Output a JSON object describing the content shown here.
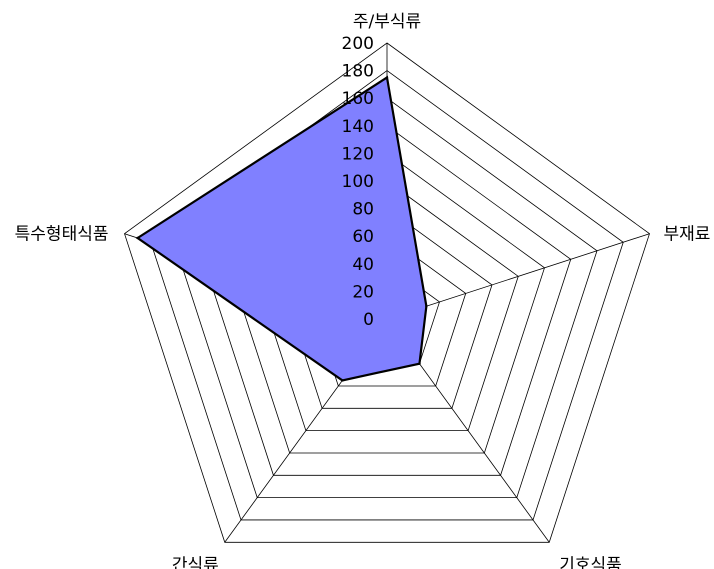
{
  "chart_data": {
    "type": "radar",
    "categories": [
      "주/부식류",
      "부재료",
      "기호식품",
      "간식류",
      "특수형태식품"
    ],
    "series": [
      {
        "values": [
          175,
          30,
          40,
          55,
          190
        ]
      }
    ],
    "rlim": [
      0,
      200
    ],
    "r_ticks": [
      "0",
      "20",
      "40",
      "60",
      "80",
      "100",
      "120",
      "140",
      "160",
      "180",
      "200"
    ],
    "grid": true,
    "legend": "none",
    "colors": {
      "fill": "#8080ff",
      "stroke": "#000000",
      "grid": "#000000"
    }
  }
}
